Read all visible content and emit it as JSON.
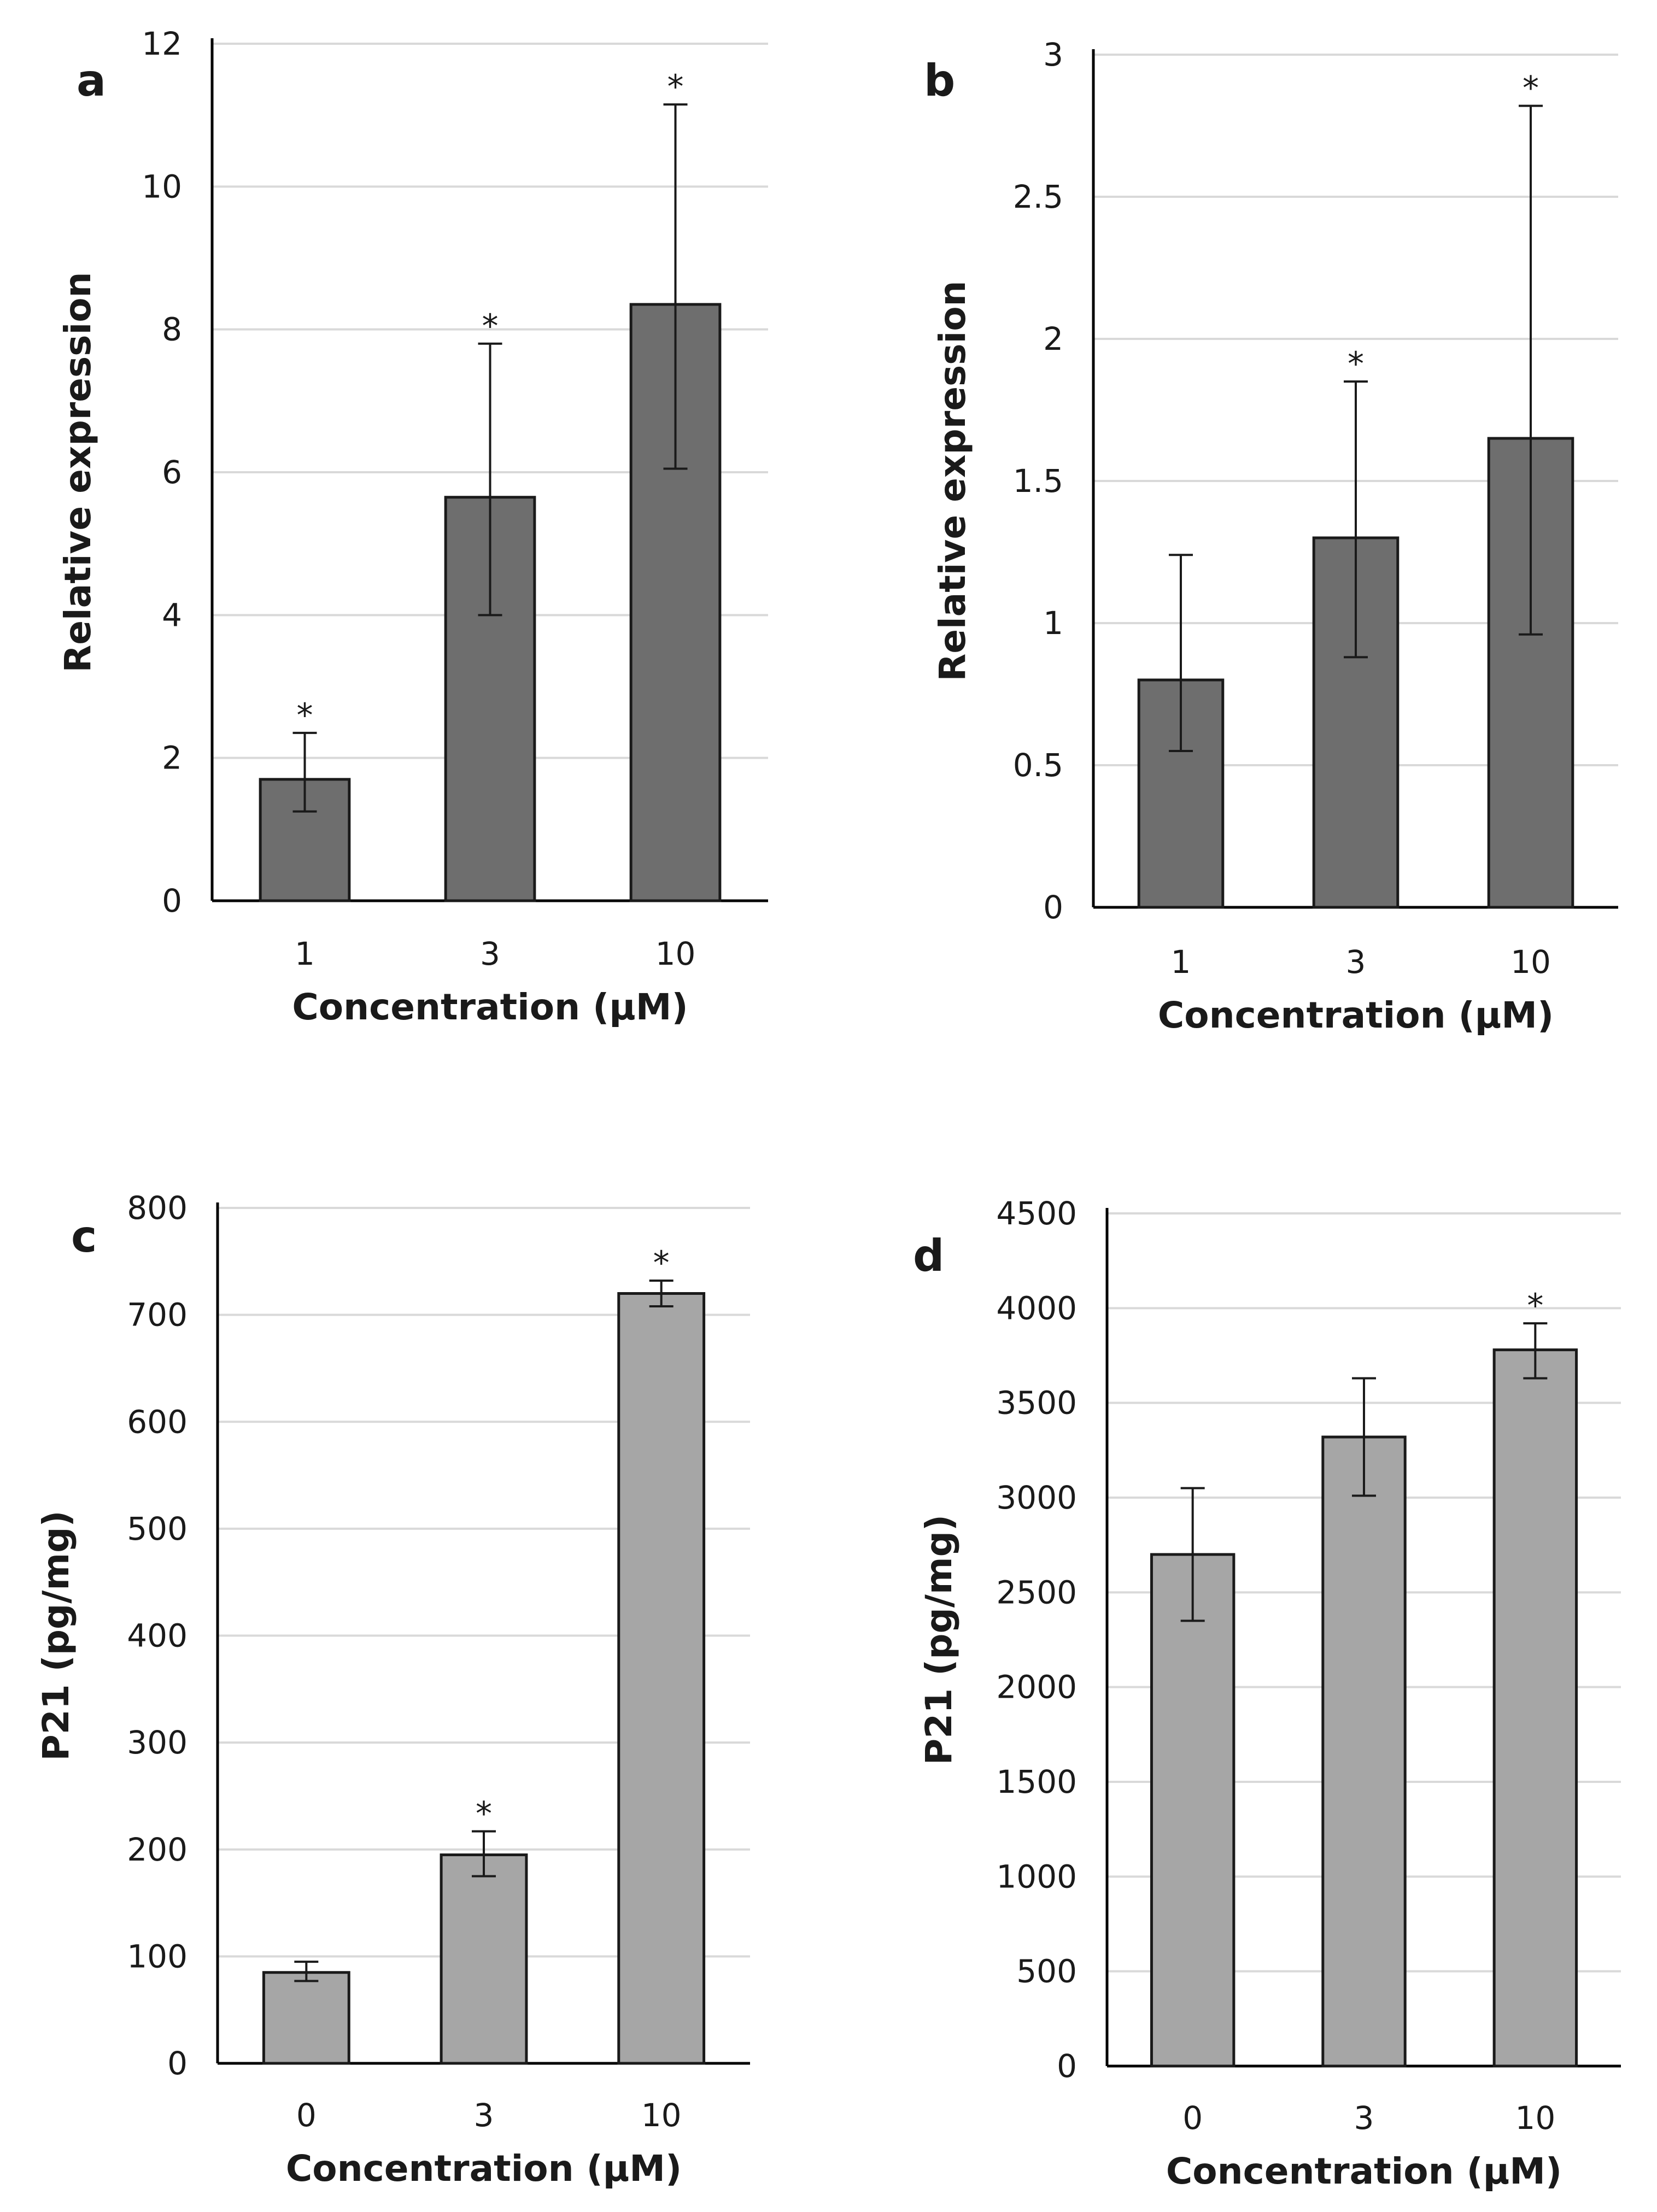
{
  "chart_data": [
    {
      "panel": "a",
      "type": "bar",
      "categories": [
        "1",
        "3",
        "10"
      ],
      "values": [
        1.7,
        5.65,
        8.35
      ],
      "errors": [
        [
          1.25,
          2.35
        ],
        [
          4.0,
          7.8
        ],
        [
          6.05,
          11.15
        ]
      ],
      "significant": [
        "*",
        "*",
        "*"
      ],
      "ylim": [
        0,
        12
      ],
      "yticks": [
        "0",
        "2",
        "4",
        "6",
        "8",
        "10",
        "12"
      ],
      "xlabel": "Concentration (µM)",
      "ylabel": "Relative expression",
      "bar_color": "#6e6e6e",
      "grid": true
    },
    {
      "panel": "b",
      "type": "bar",
      "categories": [
        "1",
        "3",
        "10"
      ],
      "values": [
        0.8,
        1.3,
        1.65
      ],
      "errors": [
        [
          0.55,
          1.24
        ],
        [
          0.88,
          1.85
        ],
        [
          0.96,
          2.82
        ]
      ],
      "significant": [
        "",
        "*",
        "*"
      ],
      "ylim": [
        0,
        3
      ],
      "yticks": [
        "0",
        "0.5",
        "1",
        "1.5",
        "2",
        "2.5",
        "3"
      ],
      "xlabel": "Concentration (µM)",
      "ylabel": "Relative expression",
      "bar_color": "#6e6e6e",
      "grid": true
    },
    {
      "panel": "c",
      "type": "bar",
      "categories": [
        "0",
        "3",
        "10"
      ],
      "values": [
        85,
        195,
        720
      ],
      "errors": [
        [
          77,
          95
        ],
        [
          175,
          217
        ],
        [
          708,
          732
        ]
      ],
      "significant": [
        "",
        "*",
        "*"
      ],
      "ylim": [
        0,
        800
      ],
      "yticks": [
        "0",
        "100",
        "200",
        "300",
        "400",
        "500",
        "600",
        "700",
        "800"
      ],
      "xlabel": "Concentration (µM)",
      "ylabel": "P21 (pg/mg)",
      "bar_color": "#a6a6a6",
      "grid": true
    },
    {
      "panel": "d",
      "type": "bar",
      "categories": [
        "0",
        "3",
        "10"
      ],
      "values": [
        2700,
        3320,
        3780
      ],
      "errors": [
        [
          2350,
          3050
        ],
        [
          3010,
          3630
        ],
        [
          3630,
          3920
        ]
      ],
      "significant": [
        "",
        "",
        "*"
      ],
      "ylim": [
        0,
        4500
      ],
      "yticks": [
        "0",
        "500",
        "1000",
        "1500",
        "2000",
        "2500",
        "3000",
        "3500",
        "4000",
        "4500"
      ],
      "xlabel": "Concentration (µM)",
      "ylabel": "P21 (pg/mg)",
      "bar_color": "#a6a6a6",
      "grid": true
    }
  ]
}
